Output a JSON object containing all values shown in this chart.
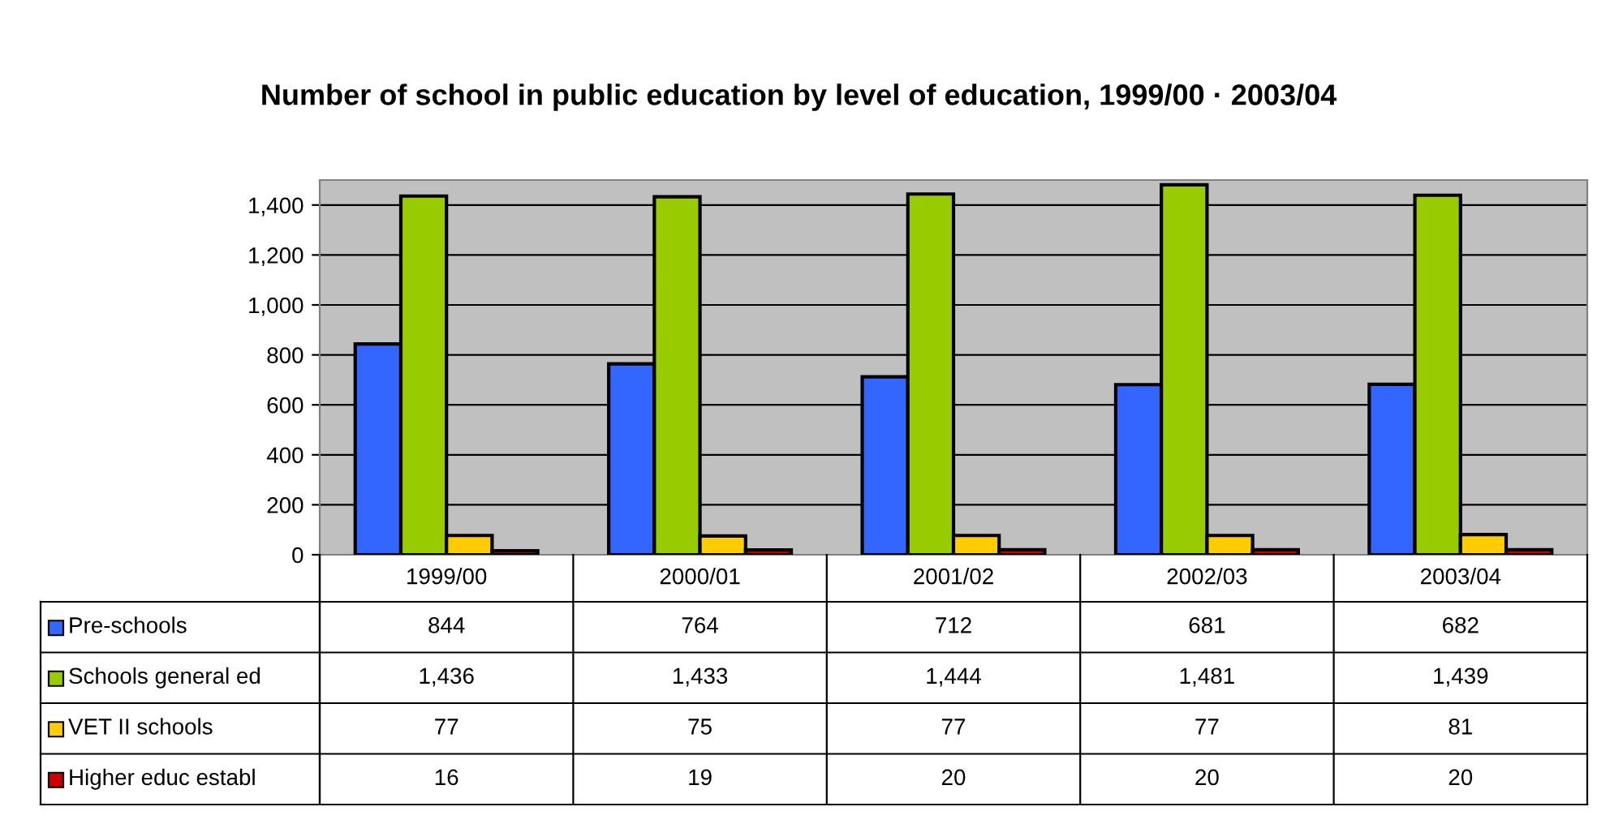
{
  "chart_data": {
    "type": "bar",
    "title": "Number of school in public education by level of education, 1999/00 · 2003/04",
    "categories": [
      "1999/00",
      "2000/01",
      "2001/02",
      "2002/03",
      "2003/04"
    ],
    "series": [
      {
        "name": "Pre-schools",
        "color": "#3366ff",
        "values": [
          844,
          764,
          712,
          681,
          682
        ],
        "value_labels": [
          "844",
          "764",
          "712",
          "681",
          "682"
        ]
      },
      {
        "name": "Schools general ed",
        "color": "#99cc00",
        "values": [
          1436,
          1433,
          1444,
          1481,
          1439
        ],
        "value_labels": [
          "1,436",
          "1,433",
          "1,444",
          "1,481",
          "1,439"
        ]
      },
      {
        "name": "VET II schools",
        "color": "#ffcc00",
        "values": [
          77,
          75,
          77,
          77,
          81
        ],
        "value_labels": [
          "77",
          "75",
          "77",
          "77",
          "81"
        ]
      },
      {
        "name": "Higher educ establ",
        "color": "#cc0000",
        "values": [
          16,
          19,
          20,
          20,
          20
        ],
        "value_labels": [
          "16",
          "19",
          "20",
          "20",
          "20"
        ]
      }
    ],
    "ylim": [
      0,
      1500
    ],
    "yticks": [
      0,
      200,
      400,
      600,
      800,
      {
        "value": 1000,
        "label": "1,000"
      },
      {
        "value": 1200,
        "label": "1,200"
      },
      {
        "value": 1400,
        "label": "1,400"
      }
    ],
    "grid": "y",
    "legend": "bottom"
  }
}
